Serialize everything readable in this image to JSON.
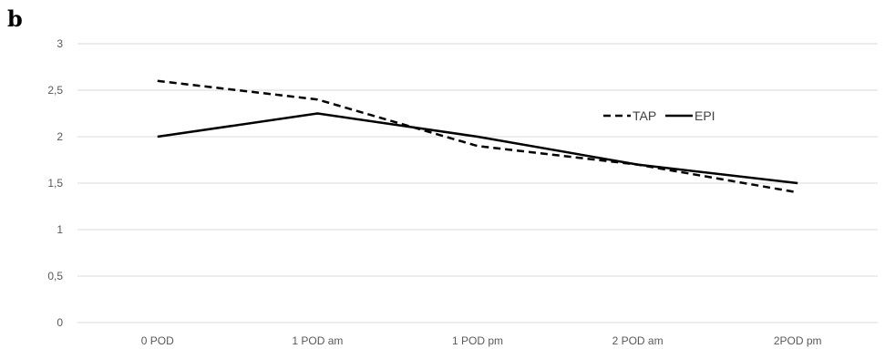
{
  "panel_label": "b",
  "chart_data": {
    "type": "line",
    "categories": [
      "0 POD",
      "1 POD am",
      "1 POD pm",
      "2 POD am",
      "2POD pm"
    ],
    "series": [
      {
        "name": "TAP",
        "values": [
          2.6,
          2.4,
          1.9,
          1.7,
          1.4
        ],
        "style": "dashed",
        "color": "#000000"
      },
      {
        "name": "EPI",
        "values": [
          2.0,
          2.25,
          2.0,
          1.7,
          1.5
        ],
        "style": "solid",
        "color": "#000000"
      }
    ],
    "y_ticks": [
      "0",
      "0,5",
      "1",
      "1,5",
      "2",
      "2,5",
      "3"
    ],
    "ylim": [
      0,
      3
    ],
    "grid": true,
    "gridline_color": "#d9d9d9",
    "legend_position": "top-right"
  }
}
